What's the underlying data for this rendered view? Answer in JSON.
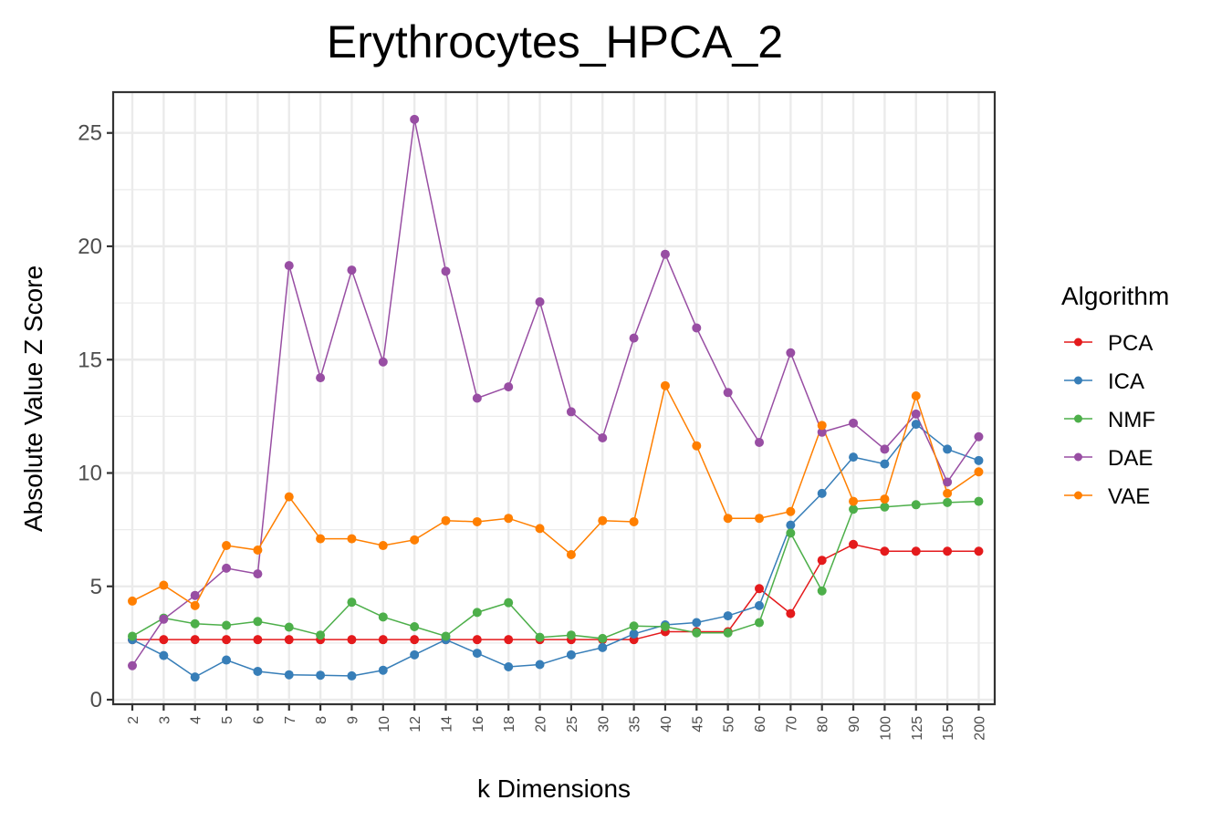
{
  "chart_data": {
    "type": "line",
    "title": "Erythrocytes_HPCA_2",
    "xlabel": "k Dimensions",
    "ylabel": "Absolute Value Z Score",
    "categories": [
      "2",
      "3",
      "4",
      "5",
      "6",
      "7",
      "8",
      "9",
      "10",
      "12",
      "14",
      "16",
      "18",
      "20",
      "25",
      "30",
      "35",
      "40",
      "45",
      "50",
      "60",
      "70",
      "80",
      "90",
      "100",
      "125",
      "150",
      "200"
    ],
    "yticks": [
      "0",
      "5",
      "10",
      "15",
      "20",
      "25"
    ],
    "ylim": [
      -0.2,
      26.8
    ],
    "grid": true,
    "legend_title": "Algorithm",
    "legend_position": "right",
    "series": [
      {
        "name": "PCA",
        "color": "#e41a1c",
        "values": [
          2.65,
          2.65,
          2.65,
          2.65,
          2.65,
          2.65,
          2.65,
          2.65,
          2.65,
          2.65,
          2.65,
          2.65,
          2.65,
          2.65,
          2.65,
          2.65,
          2.65,
          3.0,
          3.0,
          3.0,
          4.9,
          3.8,
          6.15,
          6.85,
          6.55,
          6.55,
          6.55,
          6.55
        ]
      },
      {
        "name": "ICA",
        "color": "#377eb8",
        "values": [
          2.65,
          1.95,
          1.0,
          1.75,
          1.25,
          1.1,
          1.08,
          1.05,
          1.3,
          1.98,
          2.65,
          2.05,
          1.45,
          1.55,
          1.98,
          2.3,
          2.9,
          3.3,
          3.4,
          3.7,
          4.15,
          7.7,
          9.1,
          10.7,
          10.4,
          12.15,
          11.05,
          10.55
        ]
      },
      {
        "name": "NMF",
        "color": "#4daf4a",
        "values": [
          2.8,
          3.6,
          3.35,
          3.28,
          3.45,
          3.2,
          2.85,
          4.3,
          3.65,
          3.22,
          2.8,
          3.85,
          4.28,
          2.75,
          2.85,
          2.7,
          3.25,
          3.22,
          2.95,
          2.95,
          3.4,
          7.35,
          4.8,
          8.4,
          8.5,
          8.6,
          8.7,
          8.75
        ]
      },
      {
        "name": "DAE",
        "color": "#984ea3",
        "values": [
          1.5,
          3.55,
          4.6,
          5.8,
          5.55,
          19.15,
          14.2,
          18.95,
          14.9,
          25.6,
          18.9,
          13.3,
          13.8,
          17.55,
          12.7,
          11.55,
          15.95,
          19.65,
          16.4,
          13.55,
          11.35,
          15.3,
          11.8,
          12.2,
          11.05,
          12.6,
          9.6,
          11.6
        ]
      },
      {
        "name": "VAE",
        "color": "#ff7f00",
        "values": [
          4.35,
          5.05,
          4.15,
          6.8,
          6.6,
          8.95,
          7.1,
          7.1,
          6.8,
          7.05,
          7.9,
          7.85,
          8.0,
          7.55,
          6.4,
          7.9,
          7.85,
          13.85,
          11.2,
          8.0,
          8.0,
          8.3,
          12.1,
          8.75,
          8.85,
          13.4,
          9.1,
          10.05
        ]
      }
    ]
  }
}
